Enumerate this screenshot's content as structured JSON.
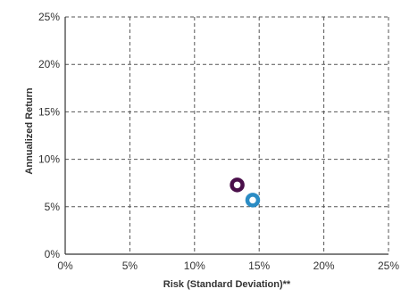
{
  "chart_data": {
    "type": "scatter",
    "xlabel": "Risk (Standard Deviation)**",
    "ylabel": "Annualized Return",
    "xlim": [
      0,
      25
    ],
    "ylim": [
      0,
      25
    ],
    "xticks": [
      0,
      5,
      10,
      15,
      20,
      25
    ],
    "yticks": [
      0,
      5,
      10,
      15,
      20,
      25
    ],
    "xtick_labels": [
      "0%",
      "5%",
      "10%",
      "15%",
      "20%",
      "25%"
    ],
    "ytick_labels": [
      "0%",
      "5%",
      "10%",
      "15%",
      "20%",
      "25%"
    ],
    "grid": true,
    "grid_style": "dashed",
    "series": [
      {
        "x": 13.3,
        "y": 7.3,
        "color": "#4a0f4a"
      },
      {
        "x": 14.5,
        "y": 5.7,
        "color": "#2b8cc4"
      }
    ]
  }
}
